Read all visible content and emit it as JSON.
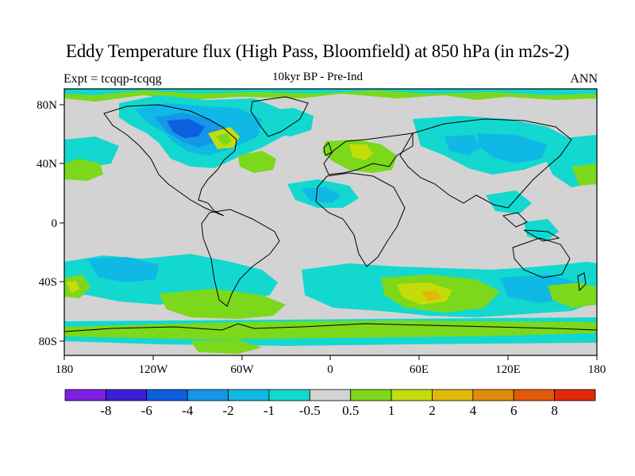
{
  "title": "Eddy Temperature flux (High Pass, Bloomfield) at 850 hPa (in m2s-2)",
  "left_subtitle": "Expt = tcqqp-tcqqg",
  "center_subtitle": "10kyr BP - Pre-Ind",
  "right_subtitle": "ANN",
  "lon_labels": [
    "180",
    "120W",
    "60W",
    "0",
    "60E",
    "120E",
    "180"
  ],
  "lat_labels": [
    "80N",
    "40N",
    "0",
    "40S",
    "80S"
  ],
  "colorbar": {
    "levels": [
      "-8",
      "-6",
      "-4",
      "-2",
      "-1",
      "-0.5",
      "0.5",
      "1",
      "2",
      "4",
      "6",
      "8"
    ],
    "colors": [
      "#7d1fe0",
      "#3a1ed8",
      "#0d5fe0",
      "#1596e6",
      "#10b8e6",
      "#12d8d0",
      "#d3d3d3",
      "#7bd81a",
      "#c4dd0a",
      "#e0b80a",
      "#e08c0a",
      "#e05a0a",
      "#e02a0a"
    ]
  },
  "colors": {
    "background": "#d3d3d3",
    "coast": "#000000"
  }
}
